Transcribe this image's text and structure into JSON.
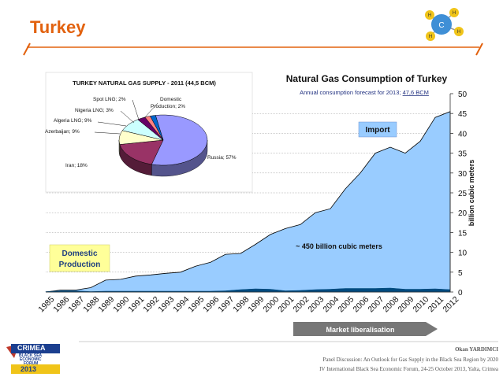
{
  "slide": {
    "title": "Turkey",
    "accent_color": "#e2620f",
    "footer_author": "Okan YARDIMCI",
    "footer_line1": "Panel Discussion: An Outlook for Gas Supply in the Black Sea Region by 2020",
    "footer_line2": "IV International Black Sea Economic Forum, 24-25 October 2013, Yalta, Crimea",
    "logo_line1": "CRIMEA",
    "logo_line2": "BLACK SEA",
    "logo_line3": "ECONOMIC",
    "logo_line4": "FORUM",
    "logo_year": "2013",
    "molecule_icon": "methane-molecule-icon",
    "molecule_label": "C",
    "molecule_atom_label": "H"
  },
  "chart_data": [
    {
      "type": "pie",
      "title": "TURKEY NATURAL GAS SUPPLY - 2011 (44,5 BCM)",
      "slices": [
        {
          "label": "Russia; 57%",
          "value": 57,
          "color": "#9999ff"
        },
        {
          "label": "Iran; 18%",
          "value": 18,
          "color": "#993366"
        },
        {
          "label": "Azerbaijan; 9%",
          "value": 9,
          "color": "#ffffcc"
        },
        {
          "label": "Algeria LNG; 9%",
          "value": 9,
          "color": "#ccffff"
        },
        {
          "label": "Nigeria LNG; 3%",
          "value": 3,
          "color": "#660066"
        },
        {
          "label": "Spot LNG; 2%",
          "value": 2,
          "color": "#ff8080"
        },
        {
          "label": "Domestic Production; 2%",
          "value": 2,
          "color": "#0066cc"
        }
      ]
    },
    {
      "type": "area",
      "title": "Natural Gas Consumption of Turkey",
      "subtitle_prefix": "Annual consumption forecast for 2013;",
      "subtitle_value": "47,6 BCM",
      "ylabel": "billion cubic meters",
      "ylim": [
        0,
        50
      ],
      "yticks": [
        0,
        5,
        10,
        15,
        20,
        25,
        30,
        35,
        40,
        45,
        50
      ],
      "x": [
        "1985",
        "1986",
        "1987",
        "1988",
        "1989",
        "1990",
        "1991",
        "1992",
        "1993",
        "1994",
        "1995",
        "1996",
        "1997",
        "1998",
        "1999",
        "2000",
        "2001",
        "2002",
        "2003",
        "2004",
        "2005",
        "2006",
        "2007",
        "2008",
        "2009",
        "2010",
        "2011",
        "2012"
      ],
      "series": [
        {
          "name": "Import",
          "color": "#99ccff",
          "values": [
            0.0,
            0.5,
            0.5,
            1.1,
            3.0,
            3.2,
            4.0,
            4.3,
            4.7,
            5.0,
            6.5,
            7.5,
            9.5,
            9.7,
            12.0,
            14.5,
            16.0,
            17.0,
            20.0,
            21.0,
            26.0,
            30.0,
            35.0,
            36.5,
            35.0,
            38.0,
            44.0,
            45.5
          ]
        },
        {
          "name": "Domestic Production",
          "color": "#004a7f",
          "values": [
            0.1,
            0.3,
            0.3,
            0.1,
            0.2,
            0.2,
            0.2,
            0.2,
            0.2,
            0.2,
            0.2,
            0.2,
            0.3,
            0.6,
            0.8,
            0.7,
            0.3,
            0.4,
            0.6,
            0.7,
            0.9,
            0.9,
            0.9,
            1.0,
            0.7,
            0.7,
            0.8,
            0.6
          ]
        }
      ],
      "annotations": {
        "import_label": "Import",
        "domestic_label_line1": "Domestic",
        "domestic_label_line2": "Production",
        "total_label": "~ 450 billion cubic meters",
        "liberalisation_label": "Market liberalisation"
      }
    }
  ]
}
